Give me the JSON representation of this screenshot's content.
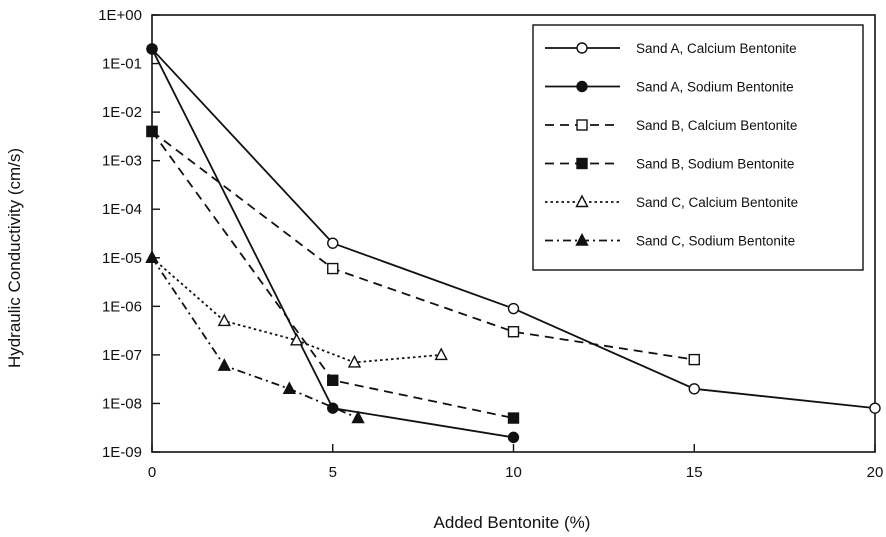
{
  "chart_data": {
    "type": "line",
    "title": "",
    "xlabel": "Added Bentonite (%)",
    "ylabel": "Hydraulic Conductivity (cm/s)",
    "xlim": [
      0,
      20
    ],
    "ylim": [
      1e-09,
      1
    ],
    "yscale": "log",
    "x_ticks": [
      0,
      5,
      10,
      15,
      20
    ],
    "x_tick_labels": [
      "0",
      "5",
      "10",
      "15",
      "20"
    ],
    "y_ticks": [
      1,
      0.1,
      0.01,
      0.001,
      0.0001,
      1e-05,
      1e-06,
      1e-07,
      1e-08,
      1e-09
    ],
    "y_tick_labels": [
      "1E+00",
      "1E-01",
      "1E-02",
      "1E-03",
      "1E-04",
      "1E-05",
      "1E-06",
      "1E-07",
      "1E-08",
      "1E-09"
    ],
    "grid": false,
    "legend_position": "top-right",
    "series": [
      {
        "name": "Sand A, Calcium Bentonite",
        "line": "solid",
        "marker": "circle-open",
        "x": [
          0,
          5,
          10,
          15,
          20
        ],
        "y": [
          0.2,
          2e-05,
          9e-07,
          2e-08,
          8e-09
        ]
      },
      {
        "name": "Sand A, Sodium Bentonite",
        "line": "solid",
        "marker": "circle-filled",
        "x": [
          0,
          5,
          10
        ],
        "y": [
          0.2,
          8e-09,
          2e-09
        ]
      },
      {
        "name": "Sand B, Calcium Bentonite",
        "line": "dashed",
        "marker": "square-open",
        "x": [
          0,
          5,
          10,
          15
        ],
        "y": [
          0.004,
          6e-06,
          3e-07,
          8e-08
        ]
      },
      {
        "name": "Sand B, Sodium Bentonite",
        "line": "dashed",
        "marker": "square-filled",
        "x": [
          0,
          5,
          10
        ],
        "y": [
          0.004,
          3e-08,
          5e-09
        ]
      },
      {
        "name": "Sand C, Calcium Bentonite",
        "line": "dotted",
        "marker": "triangle-open",
        "x": [
          0,
          2,
          4,
          5.6,
          8
        ],
        "y": [
          1e-05,
          5e-07,
          2e-07,
          7e-08,
          1e-07
        ]
      },
      {
        "name": "Sand C, Sodium Bentonite",
        "line": "dashdot",
        "marker": "triangle-filled",
        "x": [
          0,
          2,
          3.8,
          5.7
        ],
        "y": [
          1e-05,
          6e-08,
          2e-08,
          5e-09
        ]
      }
    ]
  }
}
